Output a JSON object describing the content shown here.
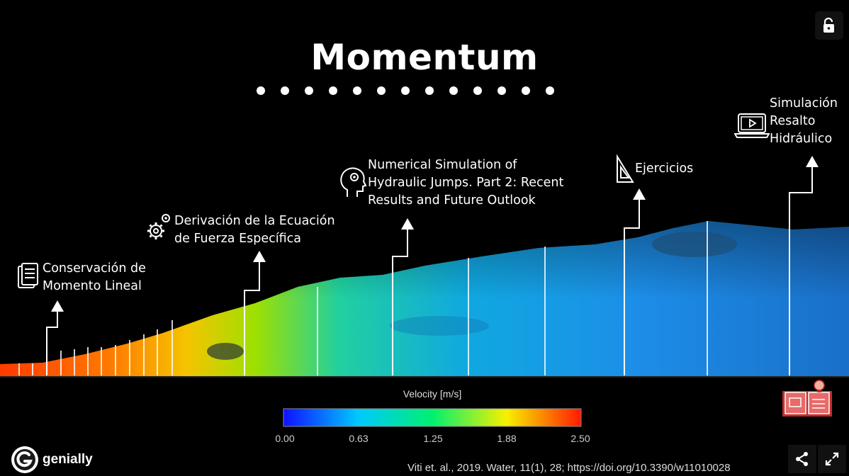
{
  "slide": {
    "title": "Momentum",
    "dot_count": 13
  },
  "hotspots": [
    {
      "id": "conservacion",
      "label": "Conservación de\nMomento Lineal",
      "icon": "document-icon"
    },
    {
      "id": "derivacion",
      "label": "Derivación de la Ecuación\nde Fuerza Específica",
      "icon": "gears-icon"
    },
    {
      "id": "numerical",
      "label": "Numerical Simulation of\nHydraulic Jumps. Part 2: Recent\nResults and Future Outlook",
      "icon": "head-gear-icon"
    },
    {
      "id": "ejercicios",
      "label": "Ejercicios",
      "icon": "set-square-icon"
    },
    {
      "id": "simulacion",
      "label": "Simulación\nResalto\nHidráulico",
      "icon": "laptop-video-icon"
    }
  ],
  "colorbar": {
    "label": "Velocity [m/s]",
    "ticks": [
      "0.00",
      "0.63",
      "1.25",
      "1.88",
      "2.50"
    ],
    "colors": [
      "#0000ff",
      "#00c8ff",
      "#00ff80",
      "#ffff00",
      "#ff0000"
    ]
  },
  "citation": "Viti et. al., 2019. Water, 11(1), 28; https://doi.org/10.3390/w11010028",
  "branding": {
    "logo_text": "genially"
  },
  "controls": {
    "unlock": "unlock-icon",
    "share": "share-icon",
    "fullscreen": "fullscreen-icon",
    "book": "book-idea-icon"
  }
}
